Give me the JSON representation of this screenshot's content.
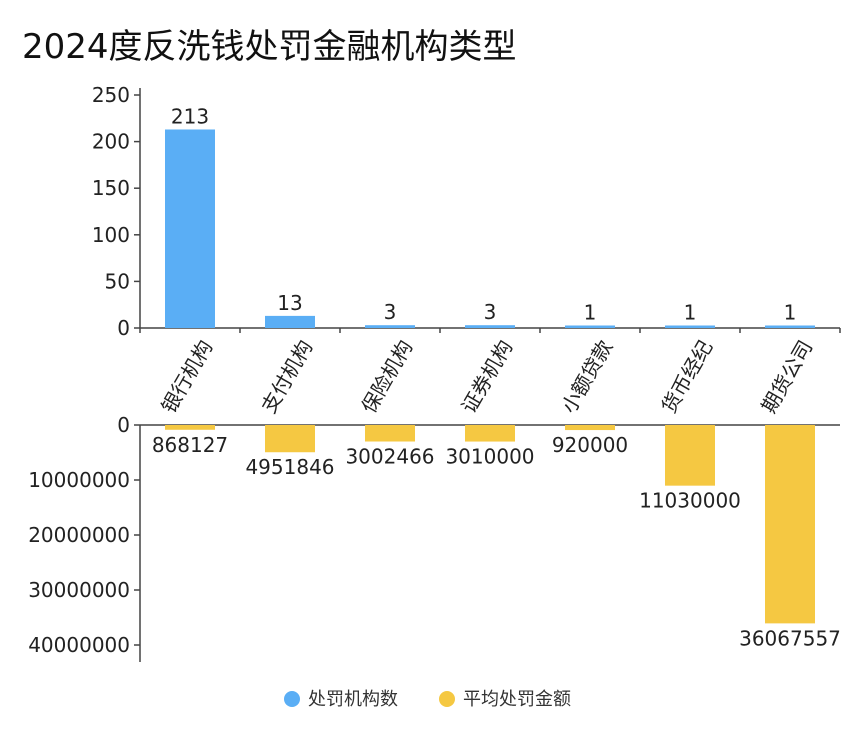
{
  "chart_data": {
    "type": "bar",
    "title": "2024度反洗钱处罚金融机构类型",
    "categories": [
      "银行机构",
      "支付机构",
      "保险机构",
      "证券机构",
      "小额贷款",
      "货币经纪",
      "期货公司"
    ],
    "series": [
      {
        "name": "处罚机构数",
        "values": [
          213,
          13,
          3,
          3,
          1,
          1,
          1
        ],
        "color": "#5AAEF5"
      },
      {
        "name": "平均处罚金额",
        "values": [
          868127,
          4951846,
          3002466,
          3010000,
          920000,
          11030000,
          36067557
        ],
        "color": "#F5C842"
      }
    ],
    "top_axis": {
      "ylim": [
        0,
        250
      ],
      "ticks": [
        "0",
        "50",
        "100",
        "150",
        "200",
        "250"
      ]
    },
    "bottom_axis": {
      "ylim": [
        0,
        40000000
      ],
      "inverted": true,
      "ticks": [
        "0",
        "10000000",
        "20000000",
        "30000000",
        "40000000"
      ]
    },
    "legend_position": "bottom-center",
    "grid": false
  }
}
